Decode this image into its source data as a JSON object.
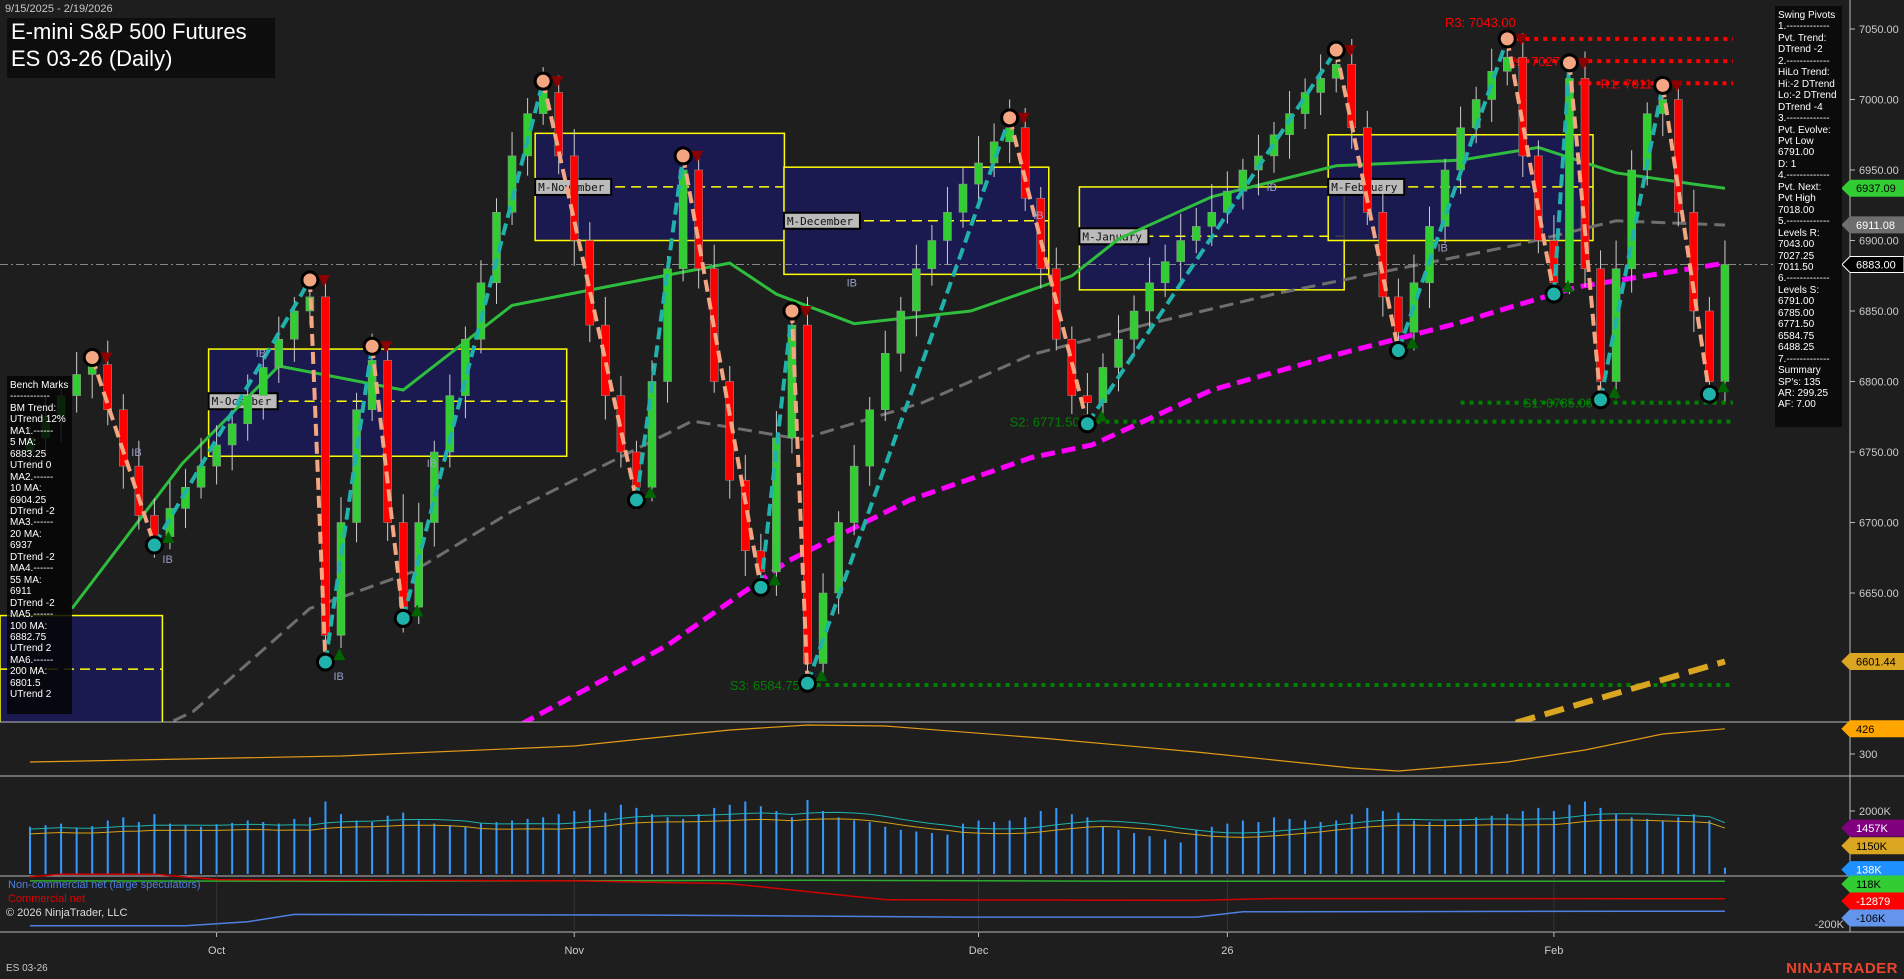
{
  "header": {
    "date_range": "9/15/2025 - 2/19/2026",
    "title": "E-mini S&P 500 Futures",
    "subtitle": "ES 03-26 (Daily)"
  },
  "swing_panel": {
    "lines": [
      "Swing Pivots",
      "1.-------------",
      "Pvt. Trend:",
      "DTrend -2",
      "2.-------------",
      "HiLo Trend:",
      "Hi:-2 DTrend",
      "Lo:-2 DTrend",
      "DTrend -4",
      "3.-------------",
      "Pvt. Evolve:",
      "Pvt Low",
      "6791.00",
      "D: 1",
      "4.-------------",
      "Pvt. Next:",
      "Pvt High",
      "7018.00",
      "5.-------------",
      "Levels R:",
      "7043.00",
      "7027.25",
      "7011.50",
      "6.-------------",
      "Levels S:",
      "6791.00",
      "6785.00",
      "6771.50",
      "6584.75",
      "6488.25",
      "7.-------------",
      "Summary",
      "SP's: 135",
      "AR: 299.25",
      "AF: 7.00"
    ]
  },
  "bench_panel": {
    "lines": [
      "Bench Marks",
      "------------",
      "BM Trend:",
      "UTrend 12%",
      "MA1.------",
      "5 MA:",
      "6883.25",
      "UTrend 0",
      "MA2.------",
      "10 MA:",
      "6904.25",
      "DTrend -2",
      "MA3.------",
      "20 MA:",
      "6937",
      "DTrend -2",
      "MA4.------",
      "55 MA:",
      "6911",
      "DTrend -2",
      "MA5.------",
      "100 MA:",
      "6882.75",
      "UTrend 2",
      "MA6.------",
      "200 MA:",
      "6801.5",
      "UTrend 2"
    ]
  },
  "footer": {
    "symbol": "ES 03-26",
    "copyright": "© 2026 NinjaTrader, LLC",
    "logo": "NINJATRADER"
  },
  "cot_legend": {
    "noncommercial": "Non-commercial net (large speculators)",
    "commercial": "Commercial net"
  },
  "colors": {
    "up_candle": "#32cd32",
    "down_candle": "#ff0000",
    "ma20": "#2ebd3c",
    "ma55": "#6e6e6e",
    "ma100": "#ff00ff",
    "pivot_high": "#f4a582",
    "pivot_low": "#20b2aa",
    "resistance": "#ff0000",
    "support": "#008000",
    "month_box": "#ffff00",
    "month_fill": "#1a1a5a",
    "trend_line": "#daa520",
    "volatility": "#e39b16",
    "volume": "#3399ff"
  },
  "chart_data": [
    {
      "type": "candlestick",
      "ylim": [
        6540,
        7070
      ],
      "y_ticks": [
        "7050.00",
        "7000.00",
        "6950.00",
        "6900.00",
        "6850.00",
        "6800.00",
        "6750.00",
        "6700.00",
        "6650.00"
      ],
      "x_ticks": [
        {
          "label": "Oct",
          "bar": 12
        },
        {
          "label": "Nov",
          "bar": 35
        },
        {
          "label": "Dec",
          "bar": 61
        },
        {
          "label": "26",
          "bar": 77
        },
        {
          "label": "Feb",
          "bar": 98
        }
      ],
      "closes": [
        6760,
        6775,
        6790,
        6805,
        6812,
        6780,
        6740,
        6705,
        6690,
        6710,
        6725,
        6740,
        6755,
        6770,
        6790,
        6810,
        6830,
        6850,
        6860,
        6620,
        6700,
        6780,
        6815,
        6700,
        6640,
        6700,
        6750,
        6790,
        6830,
        6870,
        6920,
        6960,
        6990,
        7005,
        6960,
        6900,
        6840,
        6790,
        6750,
        6725,
        6800,
        6880,
        6950,
        6880,
        6800,
        6730,
        6680,
        6665,
        6760,
        6840,
        6600,
        6650,
        6700,
        6740,
        6780,
        6820,
        6850,
        6880,
        6900,
        6920,
        6940,
        6955,
        6970,
        6980,
        6930,
        6880,
        6830,
        6790,
        6785,
        6810,
        6830,
        6850,
        6870,
        6885,
        6900,
        6910,
        6920,
        6935,
        6950,
        6960,
        6975,
        6990,
        7005,
        7015,
        7025,
        6980,
        6920,
        6860,
        6835,
        6870,
        6910,
        6950,
        6980,
        7000,
        7020,
        7030,
        6960,
        6900,
        6870,
        7015,
        6880,
        6800,
        6880,
        6950,
        6990,
        7000,
        6920,
        6850,
        6800,
        6883
      ],
      "swing_pivots": [
        {
          "bar": 4,
          "price": 6817,
          "type": "high"
        },
        {
          "bar": 8,
          "price": 6684,
          "type": "low"
        },
        {
          "bar": 18,
          "price": 6872,
          "type": "high"
        },
        {
          "bar": 19,
          "price": 6601,
          "type": "low"
        },
        {
          "bar": 22,
          "price": 6825,
          "type": "high"
        },
        {
          "bar": 24,
          "price": 6632,
          "type": "low"
        },
        {
          "bar": 33,
          "price": 7013,
          "type": "high"
        },
        {
          "bar": 39,
          "price": 6716,
          "type": "low"
        },
        {
          "bar": 42,
          "price": 6960,
          "type": "high"
        },
        {
          "bar": 47,
          "price": 6654,
          "type": "low"
        },
        {
          "bar": 49,
          "price": 6850,
          "type": "high"
        },
        {
          "bar": 50,
          "price": 6586,
          "type": "low"
        },
        {
          "bar": 63,
          "price": 6987,
          "type": "high"
        },
        {
          "bar": 68,
          "price": 6770,
          "type": "low"
        },
        {
          "bar": 84,
          "price": 7035,
          "type": "high"
        },
        {
          "bar": 88,
          "price": 6822,
          "type": "low"
        },
        {
          "bar": 95,
          "price": 7043,
          "type": "high"
        },
        {
          "bar": 98,
          "price": 6862,
          "type": "low"
        },
        {
          "bar": 99,
          "price": 7026,
          "type": "high"
        },
        {
          "bar": 101,
          "price": 6787,
          "type": "low"
        },
        {
          "bar": 105,
          "price": 7010,
          "type": "high"
        },
        {
          "bar": 108,
          "price": 6791,
          "type": "low"
        }
      ],
      "moving_averages": [
        {
          "name": "20 MA",
          "color": "#2ebd3c",
          "style": "solid",
          "points": [
            [
              2.7,
              6639
            ],
            [
              9.8,
              6742
            ],
            [
              16,
              6811
            ],
            [
              24,
              6794
            ],
            [
              31,
              6854
            ],
            [
              37,
              6867
            ],
            [
              45,
              6884
            ],
            [
              48,
              6862
            ],
            [
              53,
              6841
            ],
            [
              60.5,
              6850
            ],
            [
              67,
              6875
            ],
            [
              70,
              6901
            ],
            [
              76,
              6931
            ],
            [
              84,
              6953
            ],
            [
              92,
              6957
            ],
            [
              97,
              6966
            ],
            [
              102,
              6948
            ],
            [
              107,
              6940
            ],
            [
              109,
              6937
            ]
          ]
        },
        {
          "name": "55 MA",
          "color": "#6e6e6e",
          "style": "dashed",
          "points": [
            [
              8,
              6553
            ],
            [
              10.5,
              6566
            ],
            [
              18,
              6639
            ],
            [
              24.6,
              6665
            ],
            [
              31,
              6708
            ],
            [
              42.6,
              6772
            ],
            [
              49.6,
              6759
            ],
            [
              57.4,
              6785
            ],
            [
              64.4,
              6819
            ],
            [
              72,
              6841
            ],
            [
              80,
              6862
            ],
            [
              88,
              6880
            ],
            [
              95.7,
              6897
            ],
            [
              102,
              6914
            ],
            [
              109,
              6911
            ]
          ]
        },
        {
          "name": "100 MA",
          "color": "#ff00ff",
          "style": "dashed",
          "points": [
            [
              31.6,
              6557
            ],
            [
              41,
              6613
            ],
            [
              48.8,
              6673
            ],
            [
              56.6,
              6716
            ],
            [
              64.4,
              6746
            ],
            [
              68.3,
              6755
            ],
            [
              76,
              6794
            ],
            [
              84,
              6819
            ],
            [
              91.7,
              6841
            ],
            [
              99.5,
              6867
            ],
            [
              109,
              6884
            ]
          ]
        }
      ],
      "trend_line": {
        "color": "#daa520",
        "points": [
          [
            90,
            6540
          ],
          [
            109,
            6601.44
          ]
        ]
      },
      "month_boxes": [
        {
          "label": "",
          "start": -2,
          "end": 8,
          "high": 6634,
          "low": 6520,
          "mid": 6596
        },
        {
          "label": "M-October",
          "start": 12,
          "end": 34,
          "high": 6823,
          "low": 6747,
          "mid": 6786
        },
        {
          "label": "M-November",
          "start": 33,
          "end": 48,
          "high": 6976,
          "low": 6900,
          "mid": 6938
        },
        {
          "label": "M-December",
          "start": 49,
          "end": 65,
          "high": 6952,
          "low": 6876,
          "mid": 6914
        },
        {
          "label": "M-January",
          "start": 68,
          "end": 84,
          "high": 6938,
          "low": 6865,
          "mid": 6903
        },
        {
          "label": "M-February",
          "start": 84,
          "end": 100,
          "high": 6975,
          "low": 6900,
          "mid": 6938
        }
      ],
      "levels": [
        {
          "label": "R3: 7043.00",
          "price": 7043.0,
          "kind": "resistance",
          "from": 95,
          "label_bar": 91
        },
        {
          "label": "R2: 7027.25",
          "price": 7027.25,
          "kind": "resistance",
          "from": 95,
          "label_bar": 95
        },
        {
          "label": "R1: 7011.50",
          "price": 7011.5,
          "kind": "resistance",
          "from": 99,
          "label_bar": 101
        },
        {
          "label": "S1: 6785.00",
          "price": 6785.0,
          "kind": "support",
          "from": 92,
          "label_bar": 96
        },
        {
          "label": "S2: 6771.50",
          "price": 6771.5,
          "kind": "support",
          "from": 68,
          "label_bar": 63
        },
        {
          "label": "S3: 6584.75",
          "price": 6584.75,
          "kind": "support",
          "from": 50,
          "label_bar": 45
        }
      ],
      "last_price": 6883.0,
      "price_markers": [
        {
          "label": "6937.09",
          "value": 6937.09,
          "bg": "#32cd32",
          "fg": "#000"
        },
        {
          "label": "6911.08",
          "value": 6911.08,
          "bg": "#6e6e6e",
          "fg": "#fff"
        },
        {
          "label": "6883.00",
          "value": 6883.0,
          "bg": "#000",
          "fg": "#fff"
        },
        {
          "label": "6601.44",
          "value": 6601.44,
          "bg": "#daa520",
          "fg": "#000"
        }
      ],
      "ib_labels": [
        {
          "bar": 8,
          "price": 6684
        },
        {
          "bar": 19,
          "price": 6601
        },
        {
          "bar": 6,
          "price": 6760
        },
        {
          "bar": 14,
          "price": 6830
        },
        {
          "bar": 25,
          "price": 6752
        },
        {
          "bar": 52,
          "price": 6880
        },
        {
          "bar": 64,
          "price": 6928
        },
        {
          "bar": 79,
          "price": 6948
        },
        {
          "bar": 90,
          "price": 6905
        }
      ]
    },
    {
      "type": "line",
      "name": "",
      "ylim": [
        200,
        460
      ],
      "y_ticks": [
        "300"
      ],
      "marker": {
        "label": "426",
        "value": 426,
        "bg": "#ffa500"
      },
      "points": [
        [
          0,
          260
        ],
        [
          20,
          290
        ],
        [
          35,
          340
        ],
        [
          45,
          420
        ],
        [
          50,
          445
        ],
        [
          55,
          440
        ],
        [
          65,
          380
        ],
        [
          75,
          310
        ],
        [
          85,
          230
        ],
        [
          88,
          215
        ],
        [
          95,
          260
        ],
        [
          100,
          320
        ],
        [
          105,
          400
        ],
        [
          109,
          426
        ]
      ]
    },
    {
      "type": "bar",
      "ylim": [
        0,
        2600
      ],
      "y_ticks": [
        "2000K"
      ],
      "values": [
        1500,
        1550,
        1600,
        1480,
        1520,
        1700,
        1800,
        1650,
        1900,
        1600,
        1550,
        1500,
        1580,
        1620,
        1700,
        1650,
        1600,
        1750,
        1800,
        2300,
        1900,
        1700,
        1650,
        1850,
        1950,
        1700,
        1600,
        1550,
        1500,
        1600,
        1650,
        1700,
        1750,
        1800,
        1900,
        2000,
        2050,
        1950,
        2200,
        2100,
        1900,
        1800,
        1750,
        1900,
        2100,
        2200,
        2300,
        2150,
        2000,
        1800,
        2350,
        2000,
        1800,
        1700,
        1650,
        1500,
        1400,
        1350,
        1300,
        1250,
        1600,
        1700,
        1650,
        1700,
        1800,
        2000,
        2100,
        1900,
        1800,
        1500,
        1400,
        1300,
        1200,
        1100,
        1000,
        1400,
        1500,
        1600,
        1700,
        1650,
        1800,
        1750,
        1700,
        1650,
        1700,
        1900,
        2100,
        2000,
        1950,
        1700,
        1650,
        1700,
        1750,
        1800,
        1850,
        1900,
        2000,
        2100,
        2000,
        2200,
        2300,
        2100,
        1900,
        1800,
        1750,
        1700,
        1800,
        1900,
        1700,
        200
      ],
      "markers": [
        {
          "label": "1457K",
          "value": 1457,
          "bg": "#800080",
          "fg": "#fff"
        },
        {
          "label": "1150K",
          "value": 1150,
          "bg": "#daa520",
          "fg": "#000"
        },
        {
          "label": "138K",
          "value": 138,
          "bg": "#1e90ff",
          "fg": "#fff"
        }
      ]
    },
    {
      "type": "line",
      "ylim": [
        -240,
        170
      ],
      "y_ticks": [
        "-200K"
      ],
      "series": [
        {
          "name": "",
          "color": "#2eaa2e",
          "points": [
            [
              0,
              120
            ],
            [
              20,
              118
            ],
            [
              50,
              125
            ],
            [
              70,
              118
            ],
            [
              109,
              118
            ]
          ]
        },
        {
          "name": "Commercial net",
          "color": "#d00000",
          "points": [
            [
              0,
              150
            ],
            [
              2,
              170
            ],
            [
              8,
              170
            ],
            [
              12,
              130
            ],
            [
              35,
              120
            ],
            [
              45,
              100
            ],
            [
              55,
              -20
            ],
            [
              75,
              -25
            ],
            [
              80,
              -12
            ],
            [
              109,
              -12.879
            ]
          ]
        },
        {
          "name": "Non-commercial net (large speculators)",
          "color": "#4f7fe0",
          "points": [
            [
              0,
              -215
            ],
            [
              10,
              -215
            ],
            [
              14,
              -185
            ],
            [
              17,
              -130
            ],
            [
              40,
              -135
            ],
            [
              60,
              -150
            ],
            [
              75,
              -150
            ],
            [
              78,
              -110
            ],
            [
              109,
              -106
            ]
          ]
        }
      ],
      "markers": [
        {
          "label": "118K",
          "value": 118,
          "bg": "#32cd32",
          "fg": "#000"
        },
        {
          "label": "-12879",
          "value": -12.879,
          "bg": "#ff0000",
          "fg": "#fff"
        },
        {
          "label": "-106K",
          "value": -106,
          "bg": "#6495ed",
          "fg": "#000"
        }
      ]
    }
  ]
}
